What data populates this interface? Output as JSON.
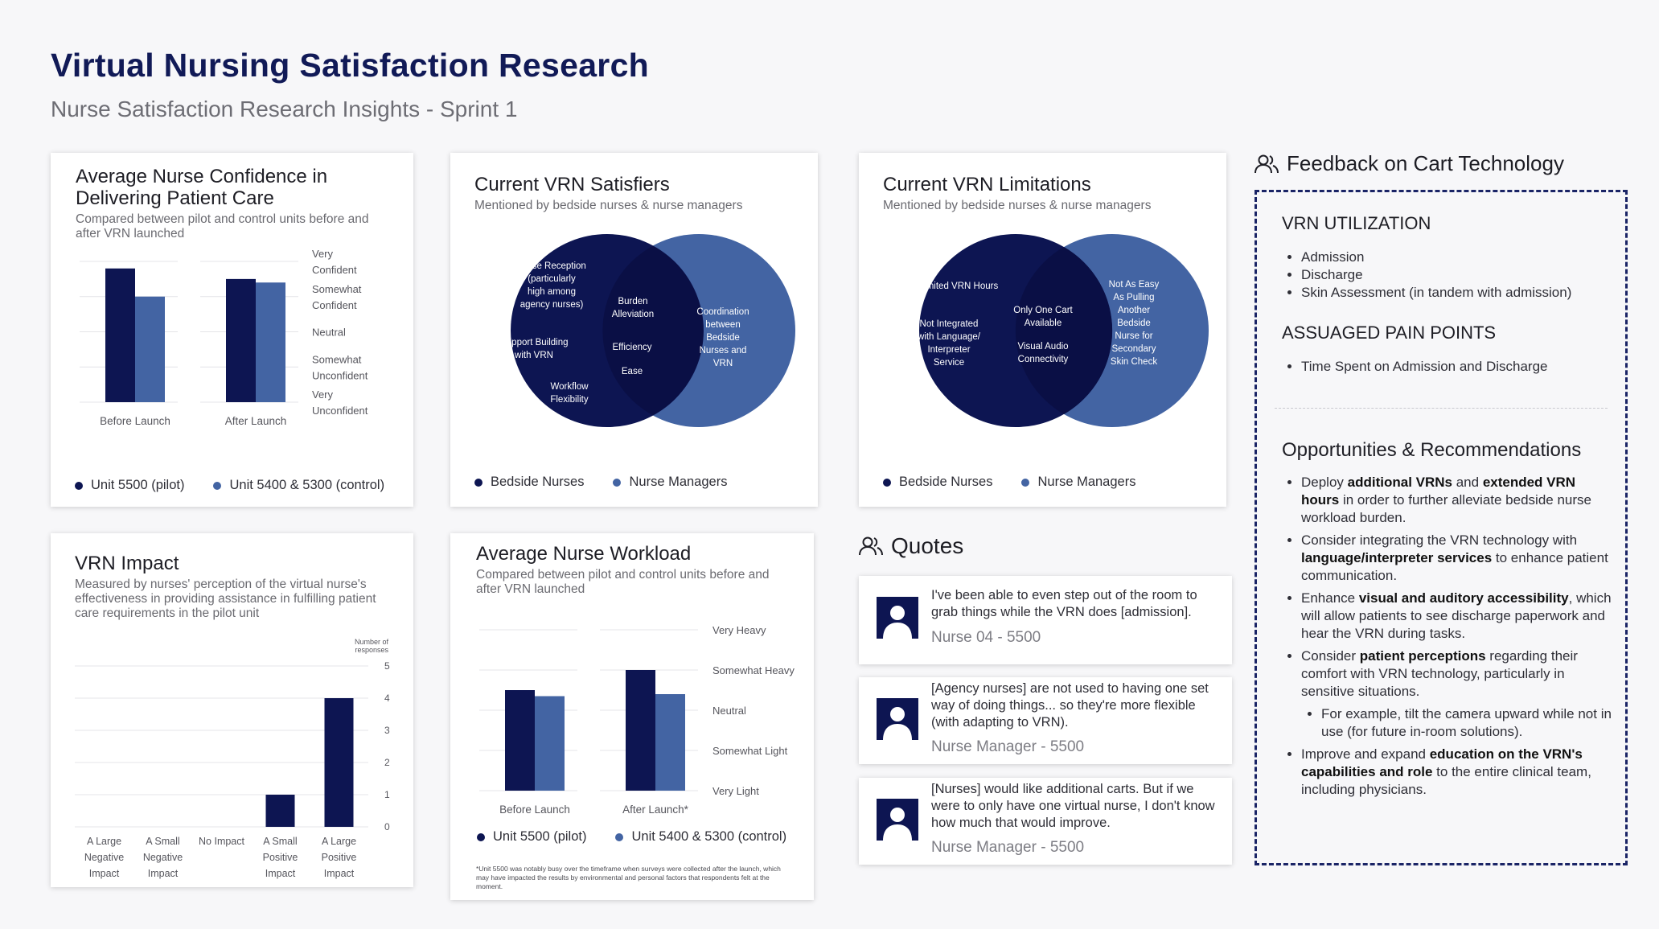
{
  "header": {
    "title": "Virtual Nursing Satisfaction Research",
    "subtitle": "Nurse Satisfaction Research Insights - Sprint 1"
  },
  "colors": {
    "navy": "#0d1552",
    "blue": "#4364a3",
    "accent": "#111a57"
  },
  "confidence_card": {
    "title": "Average Nurse Confidence in Delivering Patient Care",
    "desc": "Compared between pilot and control units before and after VRN launched"
  },
  "satisfiers_card": {
    "title": "Current VRN Satisfiers",
    "desc": "Mentioned by bedside nurses & nurse managers",
    "left": [
      "Nurse Reception (particularly high among agency nurses)",
      "Rapport Building with VRN",
      "Workflow Flexibility"
    ],
    "overlap": [
      "Burden Alleviation",
      "Efficiency",
      "Ease"
    ],
    "right": [
      "Coordination between Bedside Nurses and VRN"
    ],
    "legend": [
      "Bedside Nurses",
      "Nurse Managers"
    ]
  },
  "limitations_card": {
    "title": "Current VRN Limitations",
    "desc": "Mentioned by bedside nurses & nurse managers",
    "left": [
      "Limited VRN Hours",
      "Not Integrated with Language/ Interpreter Service"
    ],
    "overlap": [
      "Only One Cart Available",
      "Visual Audio Connectivity"
    ],
    "right": [
      "Not As Easy As Pulling Another Bedside Nurse for Secondary Skin Check"
    ],
    "legend": [
      "Bedside Nurses",
      "Nurse Managers"
    ]
  },
  "impact_card": {
    "title": "VRN Impact",
    "desc": "Measured by nurses' perception of the virtual nurse's effectiveness in providing assistance in fulfilling patient care requirements in the pilot unit"
  },
  "workload_card": {
    "title": "Average Nurse Workload",
    "desc": "Compared between pilot and control units before and after VRN launched",
    "footnote": "*Unit 5500 was notably busy over the timeframe when surveys were collected after the launch, which may have impacted the results by environmental and personal factors that respondents felt at the moment."
  },
  "chart_data": [
    {
      "type": "bar",
      "title": "Average Nurse Confidence in Delivering Patient Care",
      "categories": [
        "Before Launch",
        "After Launch"
      ],
      "y_labels": [
        "Very Confident",
        "Somewhat Confident",
        "Neutral",
        "Somewhat Unconfident",
        "Very Unconfident"
      ],
      "ylim": [
        1,
        5
      ],
      "series": [
        {
          "name": "Unit 5500 (pilot)",
          "values": [
            4.8,
            4.5
          ]
        },
        {
          "name": "Unit 5400 & 5300 (control)",
          "values": [
            4.0,
            4.4
          ]
        }
      ],
      "legend": "bottom"
    },
    {
      "type": "bar",
      "title": "VRN Impact",
      "ylabel": "Number of responses",
      "categories": [
        "A Large Negative Impact",
        "A Small Negative Impact",
        "No Impact",
        "A Small Positive Impact",
        "A Large Positive Impact"
      ],
      "values": [
        0,
        0,
        0,
        1,
        4
      ],
      "ylim": [
        0,
        5
      ],
      "yticks": [
        "5",
        "4",
        "3",
        "2",
        "1",
        "0"
      ]
    },
    {
      "type": "bar",
      "title": "Average Nurse Workload",
      "categories": [
        "Before Launch",
        "After Launch*"
      ],
      "y_labels": [
        "Very Heavy",
        "Somewhat Heavy",
        "Neutral",
        "Somewhat Light",
        "Very Light"
      ],
      "ylim": [
        1,
        5
      ],
      "series": [
        {
          "name": "Unit 5500 (pilot)",
          "values": [
            3.5,
            4.0
          ]
        },
        {
          "name": "Unit 5400 & 5300 (control)",
          "values": [
            3.35,
            3.4
          ]
        }
      ],
      "legend": "bottom"
    }
  ],
  "quotes": {
    "heading": "Quotes",
    "items": [
      {
        "text": "I've been able to even step out of the room to grab things while the VRN does [admission].",
        "who": "Nurse 04 - 5500"
      },
      {
        "text": "[Agency nurses] are not used to having one set way of doing things... so they're more flexible (with adapting to VRN).",
        "who": "Nurse Manager - 5500"
      },
      {
        "text": "[Nurses] would like additional carts. But if we were to only have one virtual nurse, I don't know how much that would improve.",
        "who": "Nurse Manager - 5500"
      }
    ]
  },
  "feedback": {
    "heading": "Feedback on Cart Technology",
    "utilization_h": "VRN UTILIZATION",
    "utilization": [
      "Admission",
      "Discharge",
      "Skin Assessment (in tandem with admission)"
    ],
    "pain_h": "ASSUAGED PAIN POINTS",
    "pain": [
      "Time Spent on Admission and Discharge"
    ],
    "opp_h": "Opportunities & Recommendations",
    "recs": [
      [
        [
          "Deploy ",
          false
        ],
        [
          "additional VRNs",
          true
        ],
        [
          " and ",
          false
        ],
        [
          "extended VRN hours",
          true
        ],
        [
          " in order to further alleviate bedside nurse workload burden.",
          false
        ]
      ],
      [
        [
          "Consider integrating the VRN technology with ",
          false
        ],
        [
          "language/interpreter services",
          true
        ],
        [
          " to enhance patient communication.",
          false
        ]
      ],
      [
        [
          "Enhance ",
          false
        ],
        [
          "visual and auditory accessibility",
          true
        ],
        [
          ", which will allow patients to see discharge paperwork and hear the VRN during tasks.",
          false
        ]
      ],
      [
        [
          "Consider ",
          false
        ],
        [
          "patient perceptions",
          true
        ],
        [
          " regarding their comfort with VRN technology, particularly in sensitive situations.",
          false
        ]
      ],
      [
        [
          "For example, tilt the camera upward while not in use (for future in-room solutions).",
          false
        ]
      ],
      [
        [
          "Improve and expand ",
          false
        ],
        [
          "education on the VRN's capabilities and role",
          true
        ],
        [
          " to the entire clinical team, including physicians.",
          false
        ]
      ]
    ]
  }
}
